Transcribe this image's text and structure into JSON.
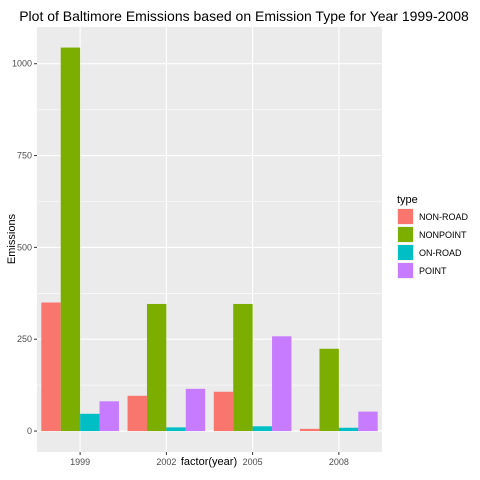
{
  "chart_data": {
    "type": "bar",
    "title": "Plot of Baltimore Emissions based on Emission Type for Year 1999-2008",
    "xlabel": "factor(year)",
    "ylabel": "Emissions",
    "categories": [
      "1999",
      "2002",
      "2005",
      "2008"
    ],
    "ylim": [
      -57,
      1100
    ],
    "yticks": [
      0,
      250,
      500,
      750,
      1000
    ],
    "ytick_labels": [
      "0",
      "250",
      "500",
      "750",
      "1000"
    ],
    "grid": true,
    "legend": {
      "title": "type",
      "placement": "right"
    },
    "series": [
      {
        "name": "NON-ROAD",
        "color": "#F8766D",
        "values": [
          350,
          96,
          107,
          6
        ]
      },
      {
        "name": "NONPOINT",
        "color": "#7CAE00",
        "values": [
          1044,
          346,
          346,
          224
        ]
      },
      {
        "name": "ON-ROAD",
        "color": "#00BFC4",
        "values": [
          47,
          10,
          13,
          9
        ]
      },
      {
        "name": "POINT",
        "color": "#C77CFF",
        "values": [
          81,
          115,
          258,
          53
        ]
      }
    ]
  }
}
